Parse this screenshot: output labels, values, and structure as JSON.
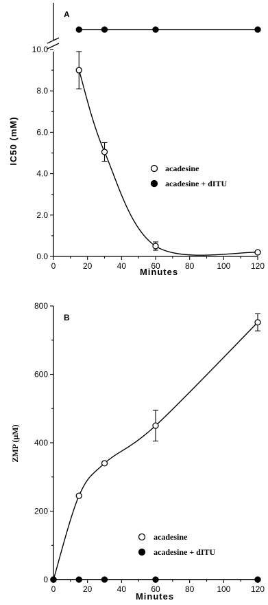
{
  "chart_data": [
    {
      "panel": "A",
      "type": "line",
      "xlabel": "Minutes",
      "ylabel": "IC50  (mM)",
      "xlim": [
        0,
        120
      ],
      "ylim": [
        0,
        10
      ],
      "axis_break": true,
      "x_ticks": [
        "0",
        "20",
        "40",
        "60",
        "80",
        "100",
        "120"
      ],
      "y_ticks": [
        "0.0",
        "2.0",
        "4.0",
        "6.0",
        "8.0",
        "10.0"
      ],
      "series": [
        {
          "name": "acadesine",
          "marker": "open-circle",
          "x": [
            15,
            30,
            60,
            120
          ],
          "y": [
            9.0,
            5.05,
            0.5,
            0.2
          ],
          "err": [
            0.9,
            0.45,
            0.2,
            0
          ]
        },
        {
          "name": "acadesine + dITU",
          "marker": "filled-circle",
          "placement": "above-break",
          "x": [
            15,
            30,
            60,
            120
          ],
          "y": [
            null,
            null,
            null,
            null
          ]
        }
      ],
      "legend_position": "center-right"
    },
    {
      "panel": "B",
      "type": "line",
      "xlabel": "Minutes",
      "ylabel": "ZMP (μM)",
      "xlim": [
        0,
        120
      ],
      "ylim": [
        0,
        800
      ],
      "x_ticks": [
        "0",
        "20",
        "40",
        "60",
        "80",
        "100",
        "120"
      ],
      "y_ticks": [
        "0",
        "200",
        "400",
        "600",
        "800"
      ],
      "series": [
        {
          "name": "acadesine",
          "marker": "open-circle",
          "x": [
            0,
            15,
            30,
            60,
            120
          ],
          "y": [
            0,
            245,
            340,
            450,
            752
          ],
          "err": [
            0,
            0,
            0,
            45,
            25
          ]
        },
        {
          "name": "acadesine + dITU",
          "marker": "filled-circle",
          "x": [
            0,
            15,
            30,
            60,
            120
          ],
          "y": [
            0,
            0,
            0,
            0,
            0
          ],
          "err": [
            0,
            0,
            0,
            0,
            0
          ]
        }
      ],
      "legend_position": "lower-right"
    }
  ]
}
